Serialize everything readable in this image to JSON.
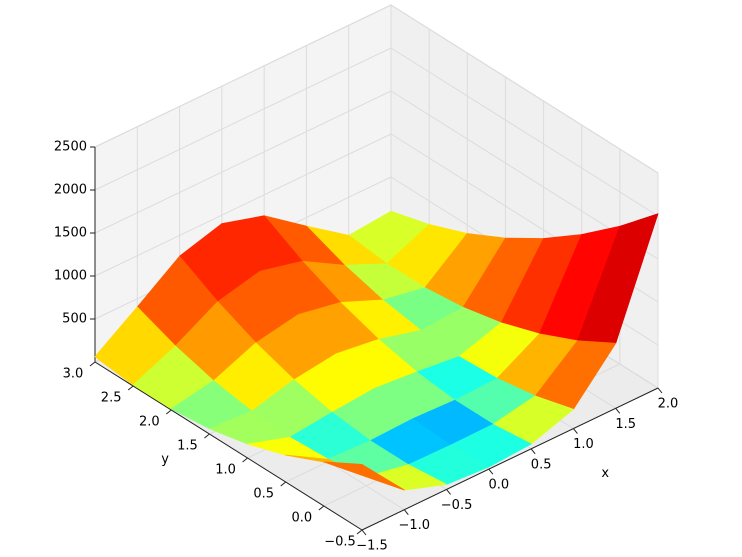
{
  "chart_data": {
    "type": "surface",
    "colormap": "jet",
    "xlabel": "x",
    "ylabel": "y",
    "x": [
      -1.5,
      -1,
      -0.5,
      0,
      0.5,
      1,
      1.5,
      2
    ],
    "y": [
      -0.5,
      0,
      0.5,
      1,
      1.5,
      2,
      2.5,
      3
    ],
    "z": [
      [
        762.5,
        229,
        58.5,
        26,
        56.5,
        225,
        756.5,
        2026
      ],
      [
        512.5,
        104,
        8.5,
        1,
        6.5,
        100,
        506.5,
        1601
      ],
      [
        312.5,
        29,
        8.5,
        26,
        6.5,
        25,
        306.5,
        1226
      ],
      [
        162.5,
        4,
        58.5,
        101,
        56.5,
        0,
        156.5,
        901
      ],
      [
        62.5,
        29,
        158.5,
        226,
        156.5,
        25,
        56.5,
        626
      ],
      [
        12.5,
        104,
        308.5,
        401,
        306.5,
        100,
        6.5,
        401
      ],
      [
        12.5,
        229,
        508.5,
        626,
        506.5,
        225,
        6.5,
        226
      ],
      [
        62.5,
        404,
        758.5,
        901,
        756.5,
        400,
        56.5,
        101
      ]
    ],
    "xlim": [
      -1.5,
      2
    ],
    "ylim": [
      -0.5,
      3
    ],
    "zlim": [
      0,
      2500
    ],
    "xticks": [
      {
        "value": -1.5,
        "label": "−1.5"
      },
      {
        "value": -1,
        "label": "−1.0"
      },
      {
        "value": -0.5,
        "label": "−0.5"
      },
      {
        "value": 0,
        "label": "0.0"
      },
      {
        "value": 0.5,
        "label": "0.5"
      },
      {
        "value": 1,
        "label": "1.0"
      },
      {
        "value": 1.5,
        "label": "1.5"
      },
      {
        "value": 2,
        "label": "2.0"
      }
    ],
    "yticks": [
      {
        "value": -0.5,
        "label": "−0.5"
      },
      {
        "value": 0,
        "label": "0.0"
      },
      {
        "value": 0.5,
        "label": "0.5"
      },
      {
        "value": 1,
        "label": "1.0"
      },
      {
        "value": 1.5,
        "label": "1.5"
      },
      {
        "value": 2,
        "label": "2.0"
      },
      {
        "value": 2.5,
        "label": "2.5"
      },
      {
        "value": 3,
        "label": "3.0"
      }
    ],
    "zticks": [
      500,
      1000,
      1500,
      2000,
      2500
    ],
    "grid": true
  }
}
